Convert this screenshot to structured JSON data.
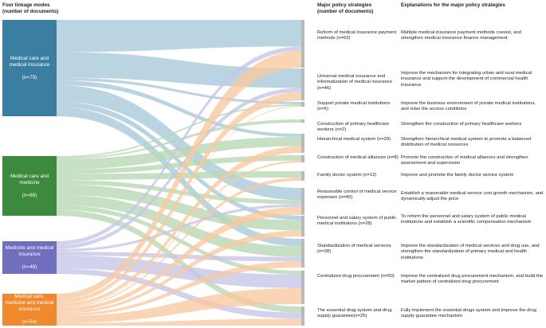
{
  "headers": {
    "modes": [
      "Four linkage modes",
      "(number of documents)"
    ],
    "strategies": [
      "Major policy strategies",
      "(number of documents)"
    ],
    "explanations": "Explanations for the major policy strategies"
  },
  "modes": [
    {
      "id": "insurance",
      "label": "Medical care and medical insurance",
      "count": "(n=79)",
      "color": "#3a7fa1",
      "flow": "#a7c9d9"
    },
    {
      "id": "medicine",
      "label": "Medical care and medicine",
      "count": "(n=68)",
      "color": "#3c8a3e",
      "flow": "#b7d7b2"
    },
    {
      "id": "drugins",
      "label": "Medicine and medical insurance",
      "count": "(n=46)",
      "color": "#6f6fbe",
      "flow": "#c5c5e8"
    },
    {
      "id": "all",
      "label": "Medical care, medicine and medical insurance",
      "count": "(n=54)",
      "color": "#f0882d",
      "flow": "#f7c9a0"
    }
  ],
  "strategies": [
    {
      "name": "Reform of medical insurance payment methods (n=63)",
      "explanation": "Multiple medical insurance payment methods coexist, and strengthen medical insurance finance management"
    },
    {
      "name": "Universal medical insurance and informatization of medical insurance (n=46)",
      "explanation": "Improve the mechanism for integrating urban and rural medical insurance and support the development of commercial health insurance"
    },
    {
      "name": "Support private medical institutions (n=6)",
      "explanation": "Improve the business environment of private medical institutions, and relax the access conditions"
    },
    {
      "name": "Construction of primary healthcare workers (n=2)",
      "explanation": "Strengthen the construction of primary healthcare workers"
    },
    {
      "name": "Hierarchical medical system (n=29)",
      "explanation": "Strengthen hierarchical medical system to promote a balanced distribution of medical resources"
    },
    {
      "name": "Construction of medical alliances (n=8)",
      "explanation": "Promote the construction of medical alliances and strengthen assessment and supervision"
    },
    {
      "name": "Family doctor system (n=12)",
      "explanation": "Improve and promote the family doctor service system"
    },
    {
      "name": "Reasonable control of medical service expenses (n=40)",
      "explanation": "Establish a reasonable medical service cost growth mechanism, and dynamically adjust the price"
    },
    {
      "name": "Personnel and salary system of public medical institutions (n=28)",
      "explanation": "To reform the personnel and salary system of public medical institutions and establish a scientific compensation mechanism"
    },
    {
      "name": "Standardization of medical services (n=38)",
      "explanation": "Improve the standardization of medical services and drug use, and strengthen the standardization of primary medical and health institutions"
    },
    {
      "name": "Centralized drug procurement (n=50)",
      "explanation": "Improve the centralized drug procurement mechanism, and build the market pattern of centralized drug procurement"
    },
    {
      "name": "The essential drug system and drug supply guarantee(n=25)",
      "explanation": "Fully implement the essential drugs system and improve the drug supply guarantee mechanism"
    }
  ],
  "links": [
    {
      "from": "insurance",
      "to": 0,
      "value": 35
    },
    {
      "from": "insurance",
      "to": 1,
      "value": 28
    },
    {
      "from": "insurance",
      "to": 2,
      "value": 3
    },
    {
      "from": "insurance",
      "to": 4,
      "value": 5
    },
    {
      "from": "insurance",
      "to": 7,
      "value": 18
    },
    {
      "from": "insurance",
      "to": 8,
      "value": 6
    },
    {
      "from": "insurance",
      "to": 9,
      "value": 10
    },
    {
      "from": "medicine",
      "to": 2,
      "value": 2
    },
    {
      "from": "medicine",
      "to": 3,
      "value": 2
    },
    {
      "from": "medicine",
      "to": 4,
      "value": 14
    },
    {
      "from": "medicine",
      "to": 5,
      "value": 6
    },
    {
      "from": "medicine",
      "to": 6,
      "value": 8
    },
    {
      "from": "medicine",
      "to": 7,
      "value": 6
    },
    {
      "from": "medicine",
      "to": 8,
      "value": 14
    },
    {
      "from": "medicine",
      "to": 9,
      "value": 14
    },
    {
      "from": "medicine",
      "to": 10,
      "value": 6
    },
    {
      "from": "medicine",
      "to": 11,
      "value": 8
    },
    {
      "from": "drugins",
      "to": 0,
      "value": 6
    },
    {
      "from": "drugins",
      "to": 1,
      "value": 6
    },
    {
      "from": "drugins",
      "to": 7,
      "value": 4
    },
    {
      "from": "drugins",
      "to": 9,
      "value": 6
    },
    {
      "from": "drugins",
      "to": 10,
      "value": 20
    },
    {
      "from": "drugins",
      "to": 11,
      "value": 8
    },
    {
      "from": "all",
      "to": 0,
      "value": 22
    },
    {
      "from": "all",
      "to": 1,
      "value": 12
    },
    {
      "from": "all",
      "to": 2,
      "value": 1
    },
    {
      "from": "all",
      "to": 4,
      "value": 10
    },
    {
      "from": "all",
      "to": 5,
      "value": 2
    },
    {
      "from": "all",
      "to": 6,
      "value": 4
    },
    {
      "from": "all",
      "to": 7,
      "value": 12
    },
    {
      "from": "all",
      "to": 8,
      "value": 8
    },
    {
      "from": "all",
      "to": 9,
      "value": 8
    },
    {
      "from": "all",
      "to": 10,
      "value": 24
    },
    {
      "from": "all",
      "to": 11,
      "value": 9
    }
  ]
}
